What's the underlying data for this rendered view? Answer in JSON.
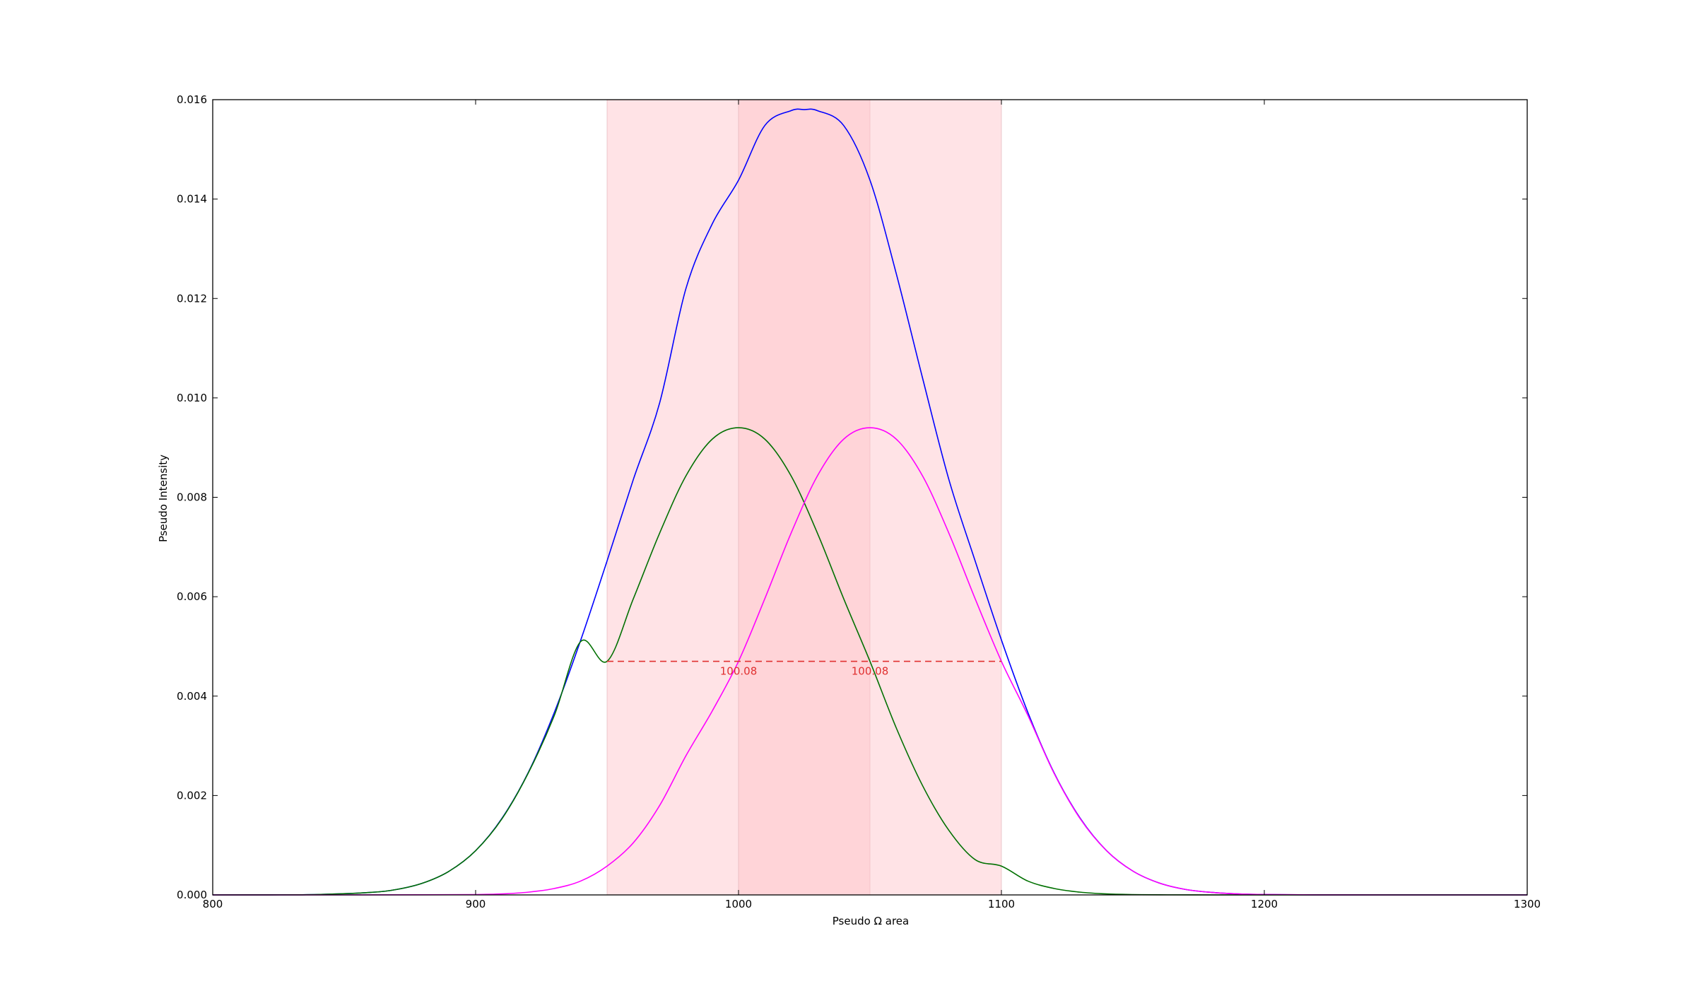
{
  "chart_data": {
    "type": "line",
    "title": "",
    "xlabel": "Pseudo Ω area",
    "ylabel": "Pseudo Intensity",
    "xlim": [
      800,
      1300
    ],
    "ylim": [
      0,
      0.016
    ],
    "grid": false,
    "x_ticks": [
      {
        "value": 800,
        "label": "800"
      },
      {
        "value": 900,
        "label": "900"
      },
      {
        "value": 1000,
        "label": "1000"
      },
      {
        "value": 1100,
        "label": "1100"
      },
      {
        "value": 1200,
        "label": "1200"
      },
      {
        "value": 1300,
        "label": "1300"
      }
    ],
    "y_ticks": [
      {
        "value": 0,
        "label": "0.000"
      },
      {
        "value": 0.002,
        "label": "0.002"
      },
      {
        "value": 0.004,
        "label": "0.004"
      },
      {
        "value": 0.006,
        "label": "0.006"
      },
      {
        "value": 0.008,
        "label": "0.008"
      },
      {
        "value": 0.01,
        "label": "0.010"
      },
      {
        "value": 0.012,
        "label": "0.012"
      },
      {
        "value": 0.014,
        "label": "0.014"
      },
      {
        "value": 0.016,
        "label": "0.016"
      }
    ],
    "shaded_regions": [
      {
        "x0": 950,
        "x1": 1050,
        "color": "#ffc0c8",
        "opacity": 0.45
      },
      {
        "x0": 1000,
        "x1": 1100,
        "color": "#ffc0c8",
        "opacity": 0.45
      }
    ],
    "series": [
      {
        "color": "#0000ff",
        "x": [
          800,
          820,
          840,
          860,
          870,
          880,
          890,
          900,
          910,
          920,
          930,
          940,
          950,
          960,
          970,
          980,
          990,
          1000,
          1010,
          1020,
          1025,
          1030,
          1040,
          1050,
          1060,
          1070,
          1080,
          1090,
          1100,
          1110,
          1120,
          1130,
          1140,
          1150,
          1160,
          1170,
          1180,
          1190,
          1200,
          1220,
          1240,
          1260,
          1280,
          1300
        ],
        "y": [
          2e-07,
          1.2e-06,
          8e-06,
          5e-05,
          0.00011,
          0.00024,
          0.00048,
          0.00089,
          0.00154,
          0.00246,
          0.00368,
          0.00513,
          0.00672,
          0.00836,
          0.0099,
          0.0122,
          0.0135,
          0.01438,
          0.01548,
          0.01578,
          0.0158,
          0.01578,
          0.01548,
          0.01438,
          0.0125,
          0.0104,
          0.00836,
          0.00672,
          0.00513,
          0.00368,
          0.00246,
          0.00154,
          0.00089,
          0.00048,
          0.00024,
          0.00011,
          5e-05,
          2e-05,
          8e-06,
          1.2e-06,
          2e-07,
          2e-08,
          0.0,
          0.0
        ]
      },
      {
        "color": "#007000",
        "x": [
          800,
          820,
          840,
          860,
          870,
          880,
          890,
          900,
          910,
          920,
          930,
          940,
          950,
          960,
          970,
          980,
          990,
          1000,
          1010,
          1020,
          1030,
          1040,
          1050,
          1060,
          1070,
          1080,
          1090,
          1100,
          1110,
          1120,
          1130,
          1140,
          1150,
          1160,
          1180,
          1200,
          1220,
          1250,
          1300
        ],
        "y": [
          2e-07,
          1.2e-06,
          8e-06,
          5e-05,
          0.00011,
          0.00024,
          0.00048,
          0.00089,
          0.00153,
          0.00245,
          0.00362,
          0.0051,
          0.0047,
          0.00596,
          0.00728,
          0.00843,
          0.00917,
          0.0094,
          0.00917,
          0.00843,
          0.00728,
          0.00596,
          0.0047,
          0.00336,
          0.0022,
          0.0013,
          0.00071,
          0.00058,
          0.00028,
          0.00013,
          5.5e-05,
          2e-05,
          7e-06,
          2e-06,
          2e-07,
          0.0,
          0.0,
          0.0,
          0.0
        ]
      },
      {
        "color": "#ff00ff",
        "x": [
          800,
          850,
          880,
          900,
          910,
          920,
          930,
          940,
          950,
          960,
          970,
          980,
          990,
          1000,
          1010,
          1020,
          1030,
          1040,
          1050,
          1060,
          1070,
          1080,
          1090,
          1100,
          1110,
          1120,
          1130,
          1140,
          1150,
          1160,
          1170,
          1180,
          1190,
          1200,
          1220,
          1250,
          1300
        ],
        "y": [
          0.0,
          0.0,
          2e-06,
          7e-06,
          2e-05,
          5.5e-05,
          0.00013,
          0.00028,
          0.00058,
          0.00105,
          0.0018,
          0.0028,
          0.0037,
          0.0047,
          0.00596,
          0.00728,
          0.00843,
          0.00917,
          0.0094,
          0.00917,
          0.00843,
          0.00728,
          0.00596,
          0.0047,
          0.00362,
          0.00245,
          0.00153,
          0.00089,
          0.00048,
          0.00024,
          0.00011,
          5e-05,
          2e-05,
          8e-06,
          1.2e-06,
          2e-08,
          0.0
        ]
      }
    ],
    "fwhm_line": {
      "x0": 950,
      "x1": 1100,
      "y": 0.0047,
      "color": "#e03030",
      "style": "dashed"
    },
    "annotations": [
      {
        "text": "100.08",
        "x": 1000,
        "y": 0.0047,
        "color": "#e03030"
      },
      {
        "text": "100.08",
        "x": 1050,
        "y": 0.0047,
        "color": "#e03030"
      }
    ]
  }
}
